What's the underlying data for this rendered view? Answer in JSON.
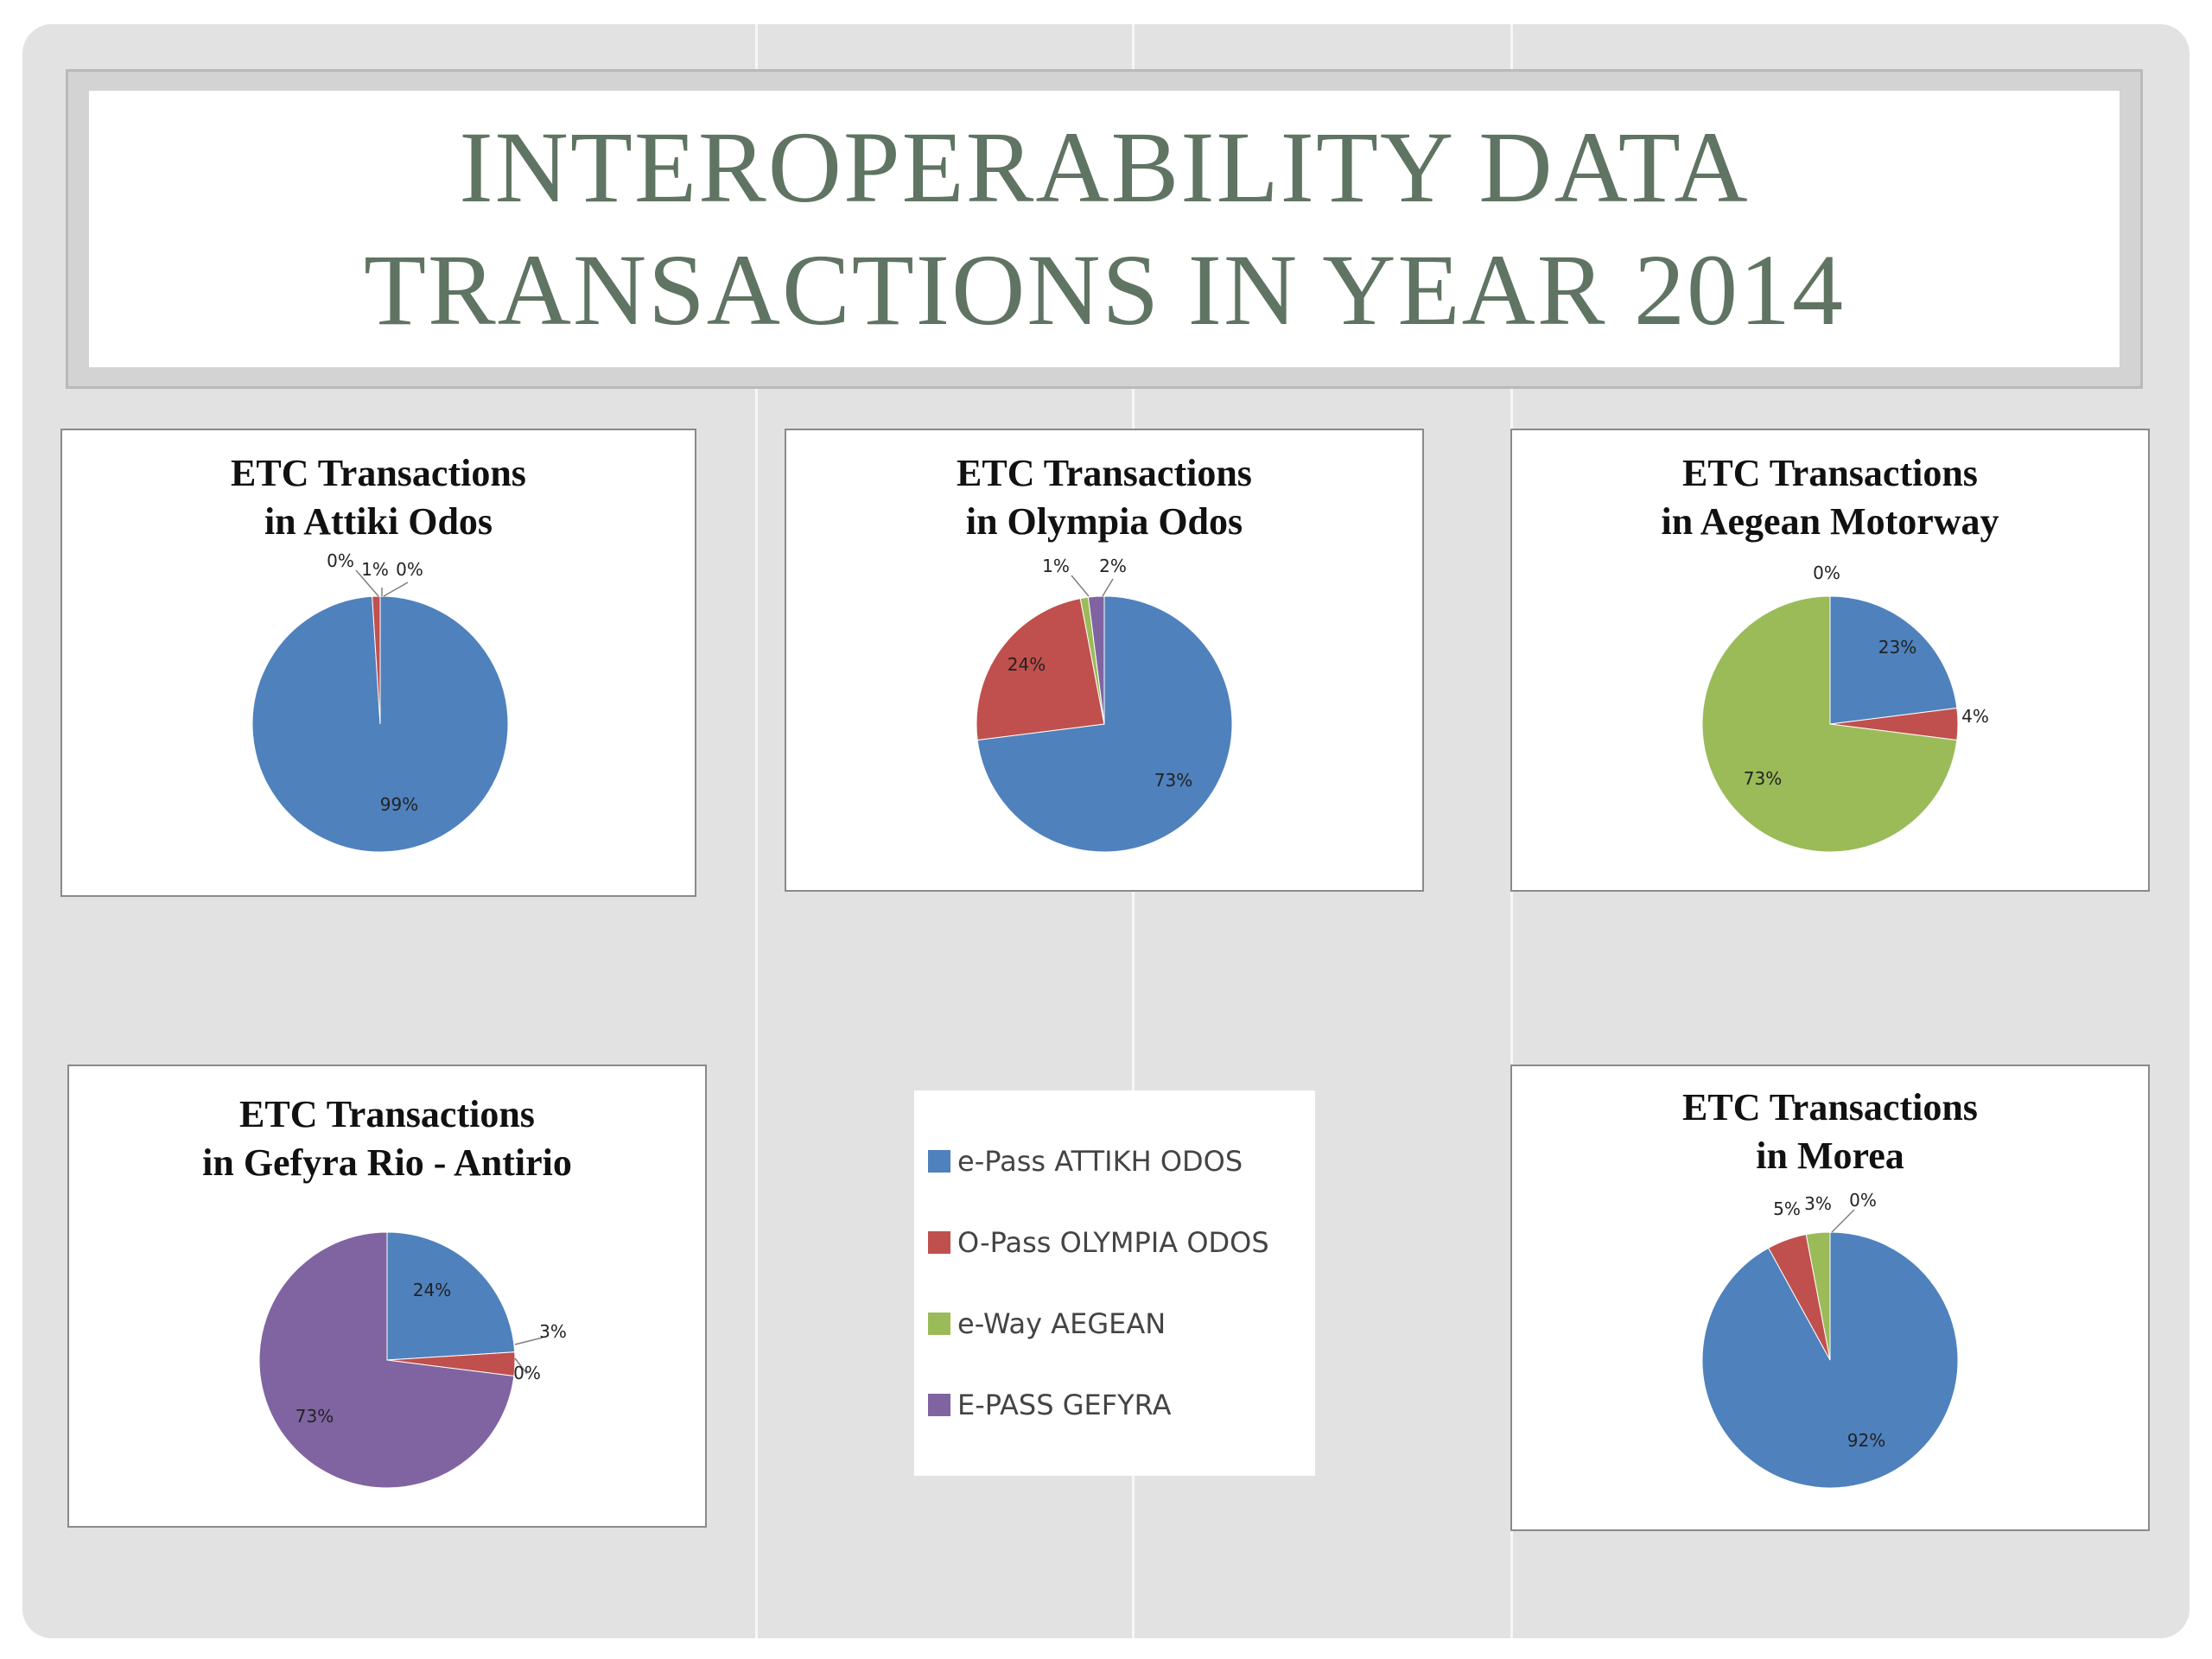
{
  "title": {
    "line1": "INTEROPERABILITY DATA",
    "line2": "TRANSACTIONS IN YEAR 2014"
  },
  "colors": {
    "e_pass_attikh": "#4f81bd",
    "o_pass_olympia": "#c0504d",
    "e_way_aegean": "#9bbb59",
    "e_pass_gefyra": "#8064a2"
  },
  "legend": [
    {
      "label": "e-Pass ATTIKH ODOS",
      "color": "#4f81bd"
    },
    {
      "label": "O-Pass OLYMPIA ODOS",
      "color": "#c0504d"
    },
    {
      "label": "e-Way AEGEAN",
      "color": "#9bbb59"
    },
    {
      "label": "E-PASS GEFYRA",
      "color": "#8064a2"
    }
  ],
  "chart_data": [
    {
      "type": "pie",
      "title": "ETC Transactions in Attiki Odos",
      "title_lines": [
        "ETC Transactions",
        "in Attiki Odos"
      ],
      "categories": [
        "e-Pass ATTIKH ODOS",
        "O-Pass OLYMPIA ODOS",
        "e-Way AEGEAN",
        "E-PASS GEFYRA"
      ],
      "values": [
        99,
        1,
        0,
        0
      ],
      "labels": [
        "99%",
        "1%",
        "0%",
        "0%"
      ]
    },
    {
      "type": "pie",
      "title": "ETC Transactions in Olympia Odos",
      "title_lines": [
        "ETC Transactions",
        "in Olympia Odos"
      ],
      "categories": [
        "e-Pass ATTIKH ODOS",
        "O-Pass OLYMPIA ODOS",
        "e-Way AEGEAN",
        "E-PASS GEFYRA"
      ],
      "values": [
        73,
        24,
        1,
        2
      ],
      "labels": [
        "73%",
        "24%",
        "1%",
        "2%"
      ]
    },
    {
      "type": "pie",
      "title": "ETC Transactions in Aegean Motorway",
      "title_lines": [
        "ETC Transactions",
        "in Aegean Motorway"
      ],
      "categories": [
        "e-Pass ATTIKH ODOS",
        "O-Pass OLYMPIA ODOS",
        "e-Way AEGEAN",
        "E-PASS GEFYRA"
      ],
      "values": [
        23,
        4,
        73,
        0
      ],
      "labels": [
        "23%",
        "4%",
        "73%",
        "0%"
      ]
    },
    {
      "type": "pie",
      "title": "ETC Transactions in Gefyra Rio - Antirio",
      "title_lines": [
        "ETC Transactions",
        "in Gefyra Rio - Antirio"
      ],
      "categories": [
        "e-Pass ATTIKH ODOS",
        "O-Pass OLYMPIA ODOS",
        "e-Way AEGEAN",
        "E-PASS GEFYRA"
      ],
      "values": [
        24,
        3,
        0,
        73
      ],
      "labels": [
        "24%",
        "3%",
        "0%",
        "73%"
      ]
    },
    {
      "type": "pie",
      "title": "ETC Transactions in Morea",
      "title_lines": [
        "ETC Transactions",
        "in Morea"
      ],
      "categories": [
        "e-Pass ATTIKH ODOS",
        "O-Pass OLYMPIA ODOS",
        "e-Way AEGEAN",
        "E-PASS GEFYRA"
      ],
      "values": [
        92,
        5,
        3,
        0
      ],
      "labels": [
        "92%",
        "5%",
        "3%",
        "0%"
      ]
    }
  ]
}
